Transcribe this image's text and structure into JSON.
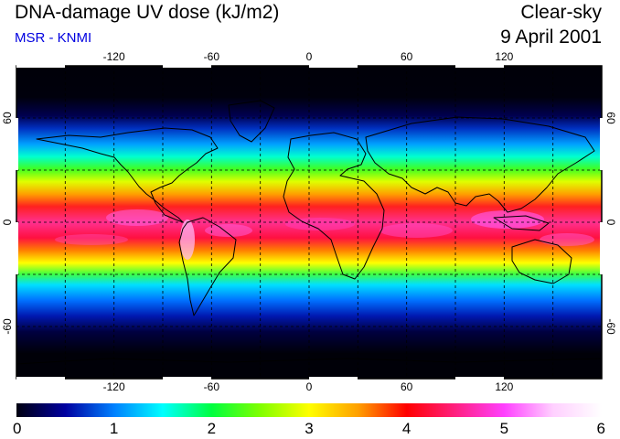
{
  "header": {
    "title": "DNA-damage UV dose (kJ/m2)",
    "subtitle": "MSR - KNMI",
    "sky": "Clear-sky",
    "date": "9 April 2001"
  },
  "map": {
    "lon_ticks": [
      {
        "value": -120,
        "label": "-120"
      },
      {
        "value": -60,
        "label": "-60"
      },
      {
        "value": 0,
        "label": "0"
      },
      {
        "value": 60,
        "label": "60"
      },
      {
        "value": 120,
        "label": "120"
      }
    ],
    "lat_ticks": [
      {
        "value": 60,
        "label": "60"
      },
      {
        "value": 0,
        "label": "0"
      },
      {
        "value": -60,
        "label": "-60"
      }
    ],
    "grid_lines": true,
    "lon_range": [
      -180,
      180
    ],
    "lat_range": [
      -90,
      90
    ]
  },
  "colorbar": {
    "labels": [
      "0",
      "1",
      "2",
      "3",
      "4",
      "5",
      "6"
    ],
    "range": [
      0,
      6
    ],
    "colors": [
      "#000010",
      "#0000a0",
      "#0080ff",
      "#00ffff",
      "#00ff40",
      "#80ff00",
      "#ffff00",
      "#ffa000",
      "#ff0000",
      "#ff2080",
      "#ff40ff",
      "#ffd0ff",
      "#ffffff"
    ]
  }
}
